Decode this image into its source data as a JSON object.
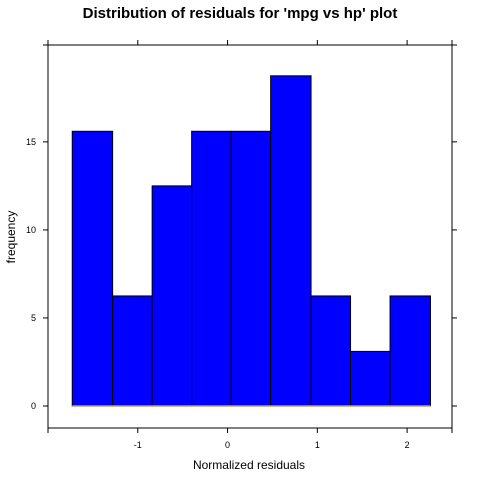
{
  "chart_data": {
    "type": "bar",
    "title": "Distribution of residuals for 'mpg vs hp' plot",
    "xlabel": "Normalized residuals",
    "ylabel": "frequency",
    "bins": [
      {
        "from": -1.73,
        "to": -1.28,
        "value": 15.6
      },
      {
        "from": -1.28,
        "to": -0.84,
        "value": 6.25
      },
      {
        "from": -0.84,
        "to": -0.4,
        "value": 12.5
      },
      {
        "from": -0.4,
        "to": 0.04,
        "value": 15.6
      },
      {
        "from": 0.04,
        "to": 0.48,
        "value": 15.6
      },
      {
        "from": 0.48,
        "to": 0.93,
        "value": 18.75
      },
      {
        "from": 0.93,
        "to": 1.37,
        "value": 6.25
      },
      {
        "from": 1.37,
        "to": 1.81,
        "value": 3.1
      },
      {
        "from": 1.81,
        "to": 2.26,
        "value": 6.25
      }
    ],
    "x_ticks": [
      -1,
      0,
      1,
      2
    ],
    "x_tick_labels": [
      "-1",
      "0",
      "1",
      "2"
    ],
    "y_ticks": [
      0,
      5,
      10,
      15
    ],
    "y_tick_labels": [
      "0",
      "5",
      "10",
      "15"
    ],
    "xlim": [
      -2.0,
      2.5
    ],
    "ylim": [
      -1.25,
      20.5
    ],
    "bar_color": "#0000FF",
    "bar_border_color": "#000000",
    "baseline_color": "#C8A050",
    "grid": false,
    "legend": "none"
  }
}
